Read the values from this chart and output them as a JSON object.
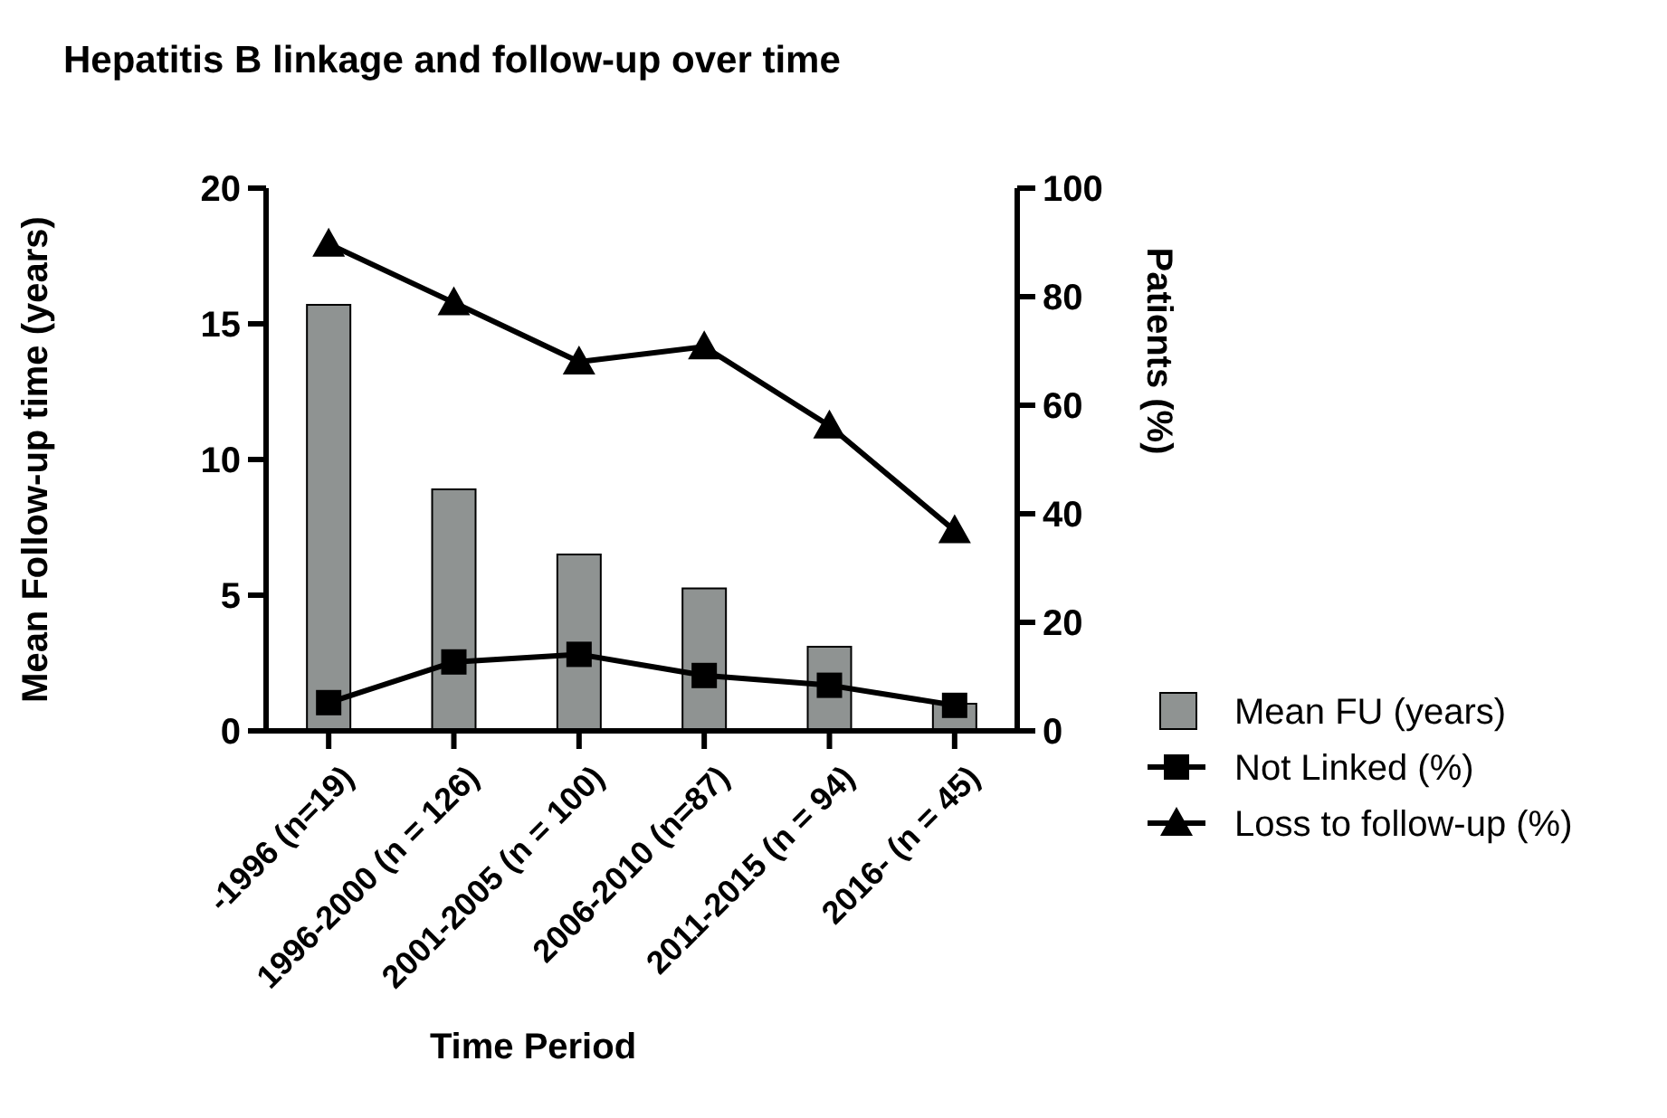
{
  "chart_data": {
    "type": "bar",
    "title": "Hepatitis B linkage and follow-up over time",
    "xlabel": "Time Period",
    "ylabel": "Mean Follow-up time (years)",
    "y2label": "Patients (%)",
    "categories": [
      "-1996 (n=19)",
      "1996-2000 (n = 126)",
      "2001-2005 (n = 100)",
      "2006-2010 (n=87)",
      "2011-2015 (n = 94)",
      "2016- (n = 45)"
    ],
    "series": [
      {
        "name": "Mean FU (years)",
        "color": "#8f9392",
        "values": [
          15.7,
          8.9,
          6.5,
          5.25,
          3.1,
          1.0
        ]
      },
      {
        "name": "Not Linked (%)",
        "type": "line",
        "axis": "y2",
        "marker": "square",
        "color": "#000000",
        "values": [
          5.2,
          12.7,
          14.1,
          10.2,
          8.4,
          4.7
        ]
      },
      {
        "name": "Loss to follow-up (%)",
        "type": "line",
        "axis": "y2",
        "marker": "triangle",
        "color": "#000000",
        "values": [
          89.7,
          78.9,
          68,
          70.8,
          56.2,
          36.9
        ]
      }
    ],
    "ylim": [
      0,
      20
    ],
    "yticks": [
      0,
      5,
      10,
      15,
      20
    ],
    "y2lim": [
      0,
      100
    ],
    "y2ticks": [
      0,
      20,
      40,
      60,
      80,
      100
    ],
    "grid": false,
    "legend": "right"
  }
}
